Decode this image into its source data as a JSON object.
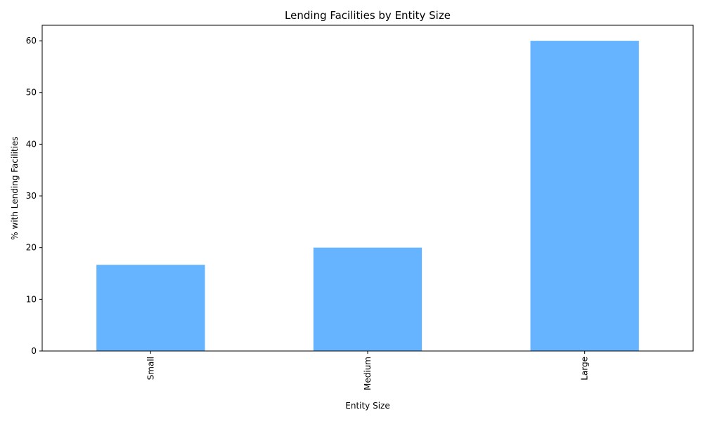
{
  "chart_data": {
    "type": "bar",
    "title": "Lending Facilities by Entity Size",
    "xlabel": "Entity Size",
    "ylabel": "% with Lending Facilities",
    "categories": [
      "Small",
      "Medium",
      "Large"
    ],
    "values": [
      16.67,
      20,
      60
    ],
    "ylim": [
      0,
      63
    ],
    "yticks": [
      0,
      10,
      20,
      30,
      40,
      50,
      60
    ],
    "bar_color": "#66b3ff",
    "grid": false,
    "legend": "none"
  }
}
